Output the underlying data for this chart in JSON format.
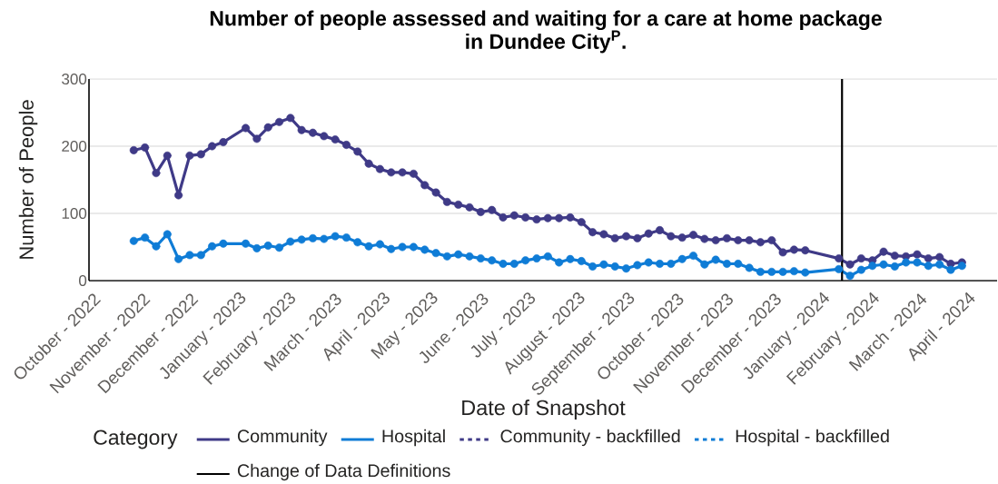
{
  "chart_data": {
    "type": "line",
    "title": "Number of people assessed and waiting for a care at home package in Dundee City$^{P}$.",
    "xlabel": "Date of Snapshot",
    "ylabel": "Number of People",
    "legend_title": "Category",
    "x": [
      "2022-10-24",
      "2022-10-31",
      "2022-11-07",
      "2022-11-14",
      "2022-11-21",
      "2022-11-28",
      "2022-12-05",
      "2022-12-12",
      "2022-12-19",
      "2023-01-02",
      "2023-01-09",
      "2023-01-16",
      "2023-01-23",
      "2023-01-30",
      "2023-02-06",
      "2023-02-13",
      "2023-02-20",
      "2023-02-27",
      "2023-03-06",
      "2023-03-13",
      "2023-03-20",
      "2023-03-27",
      "2023-04-03",
      "2023-04-10",
      "2023-04-17",
      "2023-04-24",
      "2023-05-01",
      "2023-05-08",
      "2023-05-15",
      "2023-05-22",
      "2023-05-29",
      "2023-06-05",
      "2023-06-12",
      "2023-06-19",
      "2023-06-26",
      "2023-07-03",
      "2023-07-10",
      "2023-07-17",
      "2023-07-24",
      "2023-07-31",
      "2023-08-07",
      "2023-08-14",
      "2023-08-21",
      "2023-08-28",
      "2023-09-04",
      "2023-09-11",
      "2023-09-18",
      "2023-09-25",
      "2023-10-02",
      "2023-10-09",
      "2023-10-16",
      "2023-10-23",
      "2023-10-30",
      "2023-11-06",
      "2023-11-13",
      "2023-11-20",
      "2023-11-27",
      "2023-12-04",
      "2023-12-11",
      "2023-12-18",
      "2024-01-08",
      "2024-01-15",
      "2024-01-22",
      "2024-01-29",
      "2024-02-05",
      "2024-02-12",
      "2024-02-19",
      "2024-02-26",
      "2024-03-04",
      "2024-03-11",
      "2024-03-18",
      "2024-03-25"
    ],
    "series": [
      {
        "name": "Community",
        "color": "#3f3a87",
        "values": [
          194,
          198,
          160,
          186,
          127,
          186,
          188,
          200,
          206,
          227,
          211,
          228,
          236,
          242,
          224,
          220,
          215,
          210,
          202,
          192,
          174,
          166,
          161,
          161,
          159,
          142,
          131,
          117,
          113,
          109,
          102,
          105,
          94,
          97,
          94,
          91,
          93,
          93,
          94,
          87,
          72,
          69,
          63,
          66,
          63,
          70,
          75,
          66,
          64,
          68,
          62,
          60,
          63,
          60,
          60,
          57,
          60,
          42,
          46,
          45,
          33,
          24,
          33,
          30,
          43,
          37,
          36,
          39,
          33,
          35,
          25,
          27
        ]
      },
      {
        "name": "Hospital",
        "color": "#0f7cd6",
        "values": [
          59,
          64,
          51,
          69,
          32,
          38,
          38,
          51,
          55,
          55,
          48,
          52,
          49,
          58,
          61,
          63,
          62,
          66,
          64,
          57,
          51,
          54,
          47,
          50,
          50,
          46,
          41,
          36,
          39,
          36,
          33,
          30,
          25,
          25,
          30,
          33,
          36,
          27,
          32,
          29,
          21,
          24,
          21,
          18,
          23,
          27,
          25,
          25,
          32,
          37,
          24,
          31,
          25,
          25,
          19,
          13,
          13,
          13,
          14,
          12,
          17,
          7,
          16,
          22,
          24,
          21,
          27,
          27,
          22,
          24,
          16,
          22
        ]
      },
      {
        "name": "Community - backfilled",
        "color": "#3f3a87",
        "line_style": "dotted",
        "values": [
          null,
          null,
          null,
          null,
          null,
          null,
          null,
          null,
          null,
          null,
          null,
          null,
          null,
          null,
          null,
          null,
          null,
          null,
          null,
          null,
          null,
          null,
          null,
          null,
          null,
          null,
          null,
          null,
          null,
          null,
          null,
          null,
          null,
          null,
          null,
          null,
          null,
          null,
          null,
          null,
          null,
          null,
          null,
          null,
          null,
          null,
          null,
          null,
          null,
          null,
          null,
          null,
          null,
          null,
          null,
          null,
          null,
          null,
          null,
          null,
          null,
          null,
          null,
          null,
          null,
          null,
          null,
          null,
          null,
          null,
          null,
          null
        ]
      },
      {
        "name": "Hospital - backfilled",
        "color": "#0f7cd6",
        "line_style": "dotted",
        "values": [
          null,
          null,
          null,
          null,
          null,
          null,
          null,
          null,
          null,
          null,
          null,
          null,
          null,
          null,
          null,
          null,
          null,
          null,
          null,
          null,
          null,
          null,
          null,
          null,
          null,
          null,
          null,
          null,
          null,
          null,
          null,
          null,
          null,
          null,
          null,
          null,
          null,
          null,
          null,
          null,
          null,
          null,
          null,
          null,
          null,
          null,
          null,
          null,
          null,
          null,
          null,
          null,
          null,
          null,
          null,
          null,
          null,
          null,
          null,
          null,
          null,
          null,
          null,
          null,
          null,
          null,
          null,
          null,
          null,
          null,
          null,
          null
        ]
      }
    ],
    "xlim": [
      "2022-09-26",
      "2024-04-16"
    ],
    "xticks": [
      {
        "value": "2022-10-01",
        "label": "October - 2022"
      },
      {
        "value": "2022-11-01",
        "label": "November - 2022"
      },
      {
        "value": "2022-12-01",
        "label": "December - 2022"
      },
      {
        "value": "2023-01-01",
        "label": "January - 2023"
      },
      {
        "value": "2023-02-01",
        "label": "February - 2023"
      },
      {
        "value": "2023-03-01",
        "label": "March - 2023"
      },
      {
        "value": "2023-04-01",
        "label": "April - 2023"
      },
      {
        "value": "2023-05-01",
        "label": "May - 2023"
      },
      {
        "value": "2023-06-01",
        "label": "June - 2023"
      },
      {
        "value": "2023-07-01",
        "label": "July - 2023"
      },
      {
        "value": "2023-08-01",
        "label": "August - 2023"
      },
      {
        "value": "2023-09-01",
        "label": "September - 2023"
      },
      {
        "value": "2023-10-01",
        "label": "October - 2023"
      },
      {
        "value": "2023-11-01",
        "label": "November - 2023"
      },
      {
        "value": "2023-12-01",
        "label": "December - 2023"
      },
      {
        "value": "2024-01-01",
        "label": "January - 2024"
      },
      {
        "value": "2024-02-01",
        "label": "February - 2024"
      },
      {
        "value": "2024-03-01",
        "label": "March - 2024"
      },
      {
        "value": "2024-04-01",
        "label": "April - 2024"
      }
    ],
    "ylim": [
      0,
      300
    ],
    "yticks": [
      0,
      100,
      200,
      300
    ],
    "grid": "y",
    "legend": "bottom",
    "marker": "circle",
    "line_style": "solid",
    "ref_lines": [
      {
        "axis": "x",
        "value": "2024-01-10",
        "label": "Change of Data Definitions",
        "color": "#000000"
      }
    ]
  }
}
